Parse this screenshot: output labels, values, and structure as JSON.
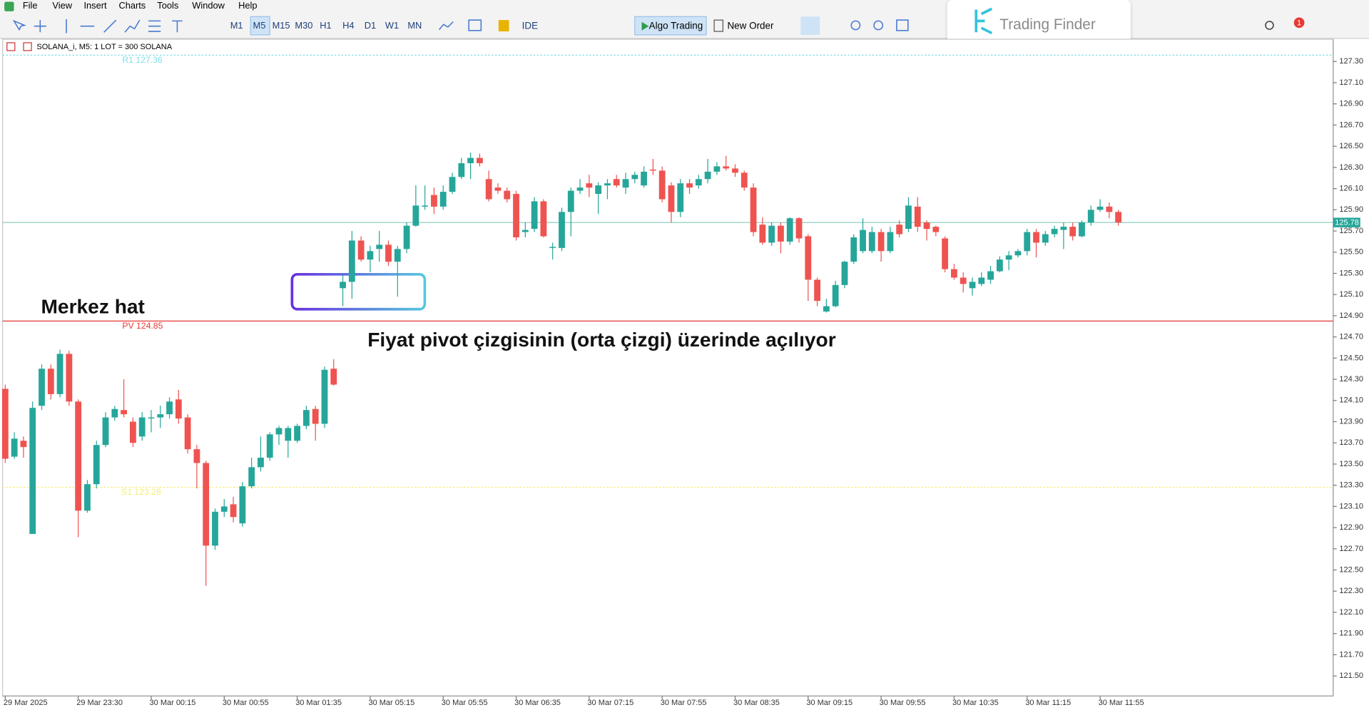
{
  "menu": [
    "File",
    "View",
    "Insert",
    "Charts",
    "Tools",
    "Window",
    "Help"
  ],
  "toolbar": {
    "timeframes": [
      "M1",
      "M5",
      "M15",
      "M30",
      "H1",
      "H4",
      "D1",
      "W1",
      "MN"
    ],
    "ide": "IDE",
    "algo_trading": "Algo Trading",
    "new_order": "New Order",
    "notifications": "1"
  },
  "watermark": "Trading Finder",
  "chart_data": {
    "type": "candlestick",
    "title": "SOLANA_i, M5:  1 LOT = 300 SOLANA",
    "x": [
      "29 Mar 2025",
      null,
      null,
      null,
      null,
      null,
      null,
      null,
      "29 Mar 23:30",
      null,
      null,
      null,
      null,
      null,
      null,
      null,
      "30 Mar 00:15",
      null,
      null,
      null,
      null,
      null,
      null,
      null,
      "30 Mar 00:55",
      null,
      null,
      null,
      null,
      null,
      null,
      null,
      "30 Mar 01:35",
      null,
      null,
      null,
      null,
      null,
      null,
      null,
      "30 Mar 05:15",
      null,
      null,
      null,
      null,
      null,
      null,
      null,
      "30 Mar 05:55",
      null,
      null,
      null,
      null,
      null,
      null,
      null,
      "30 Mar 06:35",
      null,
      null,
      null,
      null,
      null,
      null,
      null,
      "30 Mar 07:15",
      null,
      null,
      null,
      null,
      null,
      null,
      null,
      "30 Mar 07:55",
      null,
      null,
      null,
      null,
      null,
      null,
      null,
      "30 Mar 08:35",
      null,
      null,
      null,
      null,
      null,
      null,
      null,
      "30 Mar 09:15",
      null,
      null,
      null,
      null,
      null,
      null,
      null,
      "30 Mar 09:55",
      null,
      null,
      null,
      null,
      null,
      null,
      null,
      "30 Mar 10:35",
      null,
      null,
      null,
      null,
      null,
      null,
      null,
      "30 Mar 11:15",
      null,
      null,
      null,
      null,
      null,
      null,
      null,
      "30 Mar 11:55",
      null,
      null
    ],
    "open": [
      124.21,
      123.57,
      123.72,
      122.84,
      124.05,
      124.4,
      124.16,
      124.54,
      124.09,
      123.06,
      123.31,
      123.68,
      123.94,
      124.01,
      123.9,
      123.76,
      123.93,
      123.94,
      123.97,
      124.11,
      123.94,
      123.64,
      123.51,
      122.73,
      123.05,
      123.12,
      122.94,
      123.29,
      123.47,
      123.56,
      123.78,
      123.72,
      123.72,
      123.86,
      124.02,
      123.88,
      124.4,
      125.16,
      125.22,
      125.61,
      125.43,
      125.53,
      125.57,
      125.41,
      125.53,
      125.75,
      125.93,
      126.04,
      125.93,
      126.07,
      126.21,
      126.34,
      126.39,
      126.19,
      126.11,
      126.08,
      126.05,
      125.69,
      125.72,
      125.98,
      125.54,
      125.54,
      125.88,
      126.08,
      126.15,
      126.05,
      126.13,
      126.19,
      126.11,
      126.19,
      126.13,
      126.28,
      126.27,
      126.13,
      125.88,
      126.15,
      126.13,
      126.19,
      126.26,
      126.31,
      126.29,
      126.25,
      126.11,
      125.76,
      125.59,
      125.75,
      125.6,
      125.82,
      125.65,
      125.24,
      124.94,
      124.99,
      125.19,
      125.41,
      125.51,
      125.51,
      125.69,
      125.51,
      125.76,
      125.72,
      125.93,
      125.78,
      125.74,
      125.63,
      125.34,
      125.26,
      125.16,
      125.2,
      125.24,
      125.32,
      125.43,
      125.47,
      125.51,
      125.69,
      125.59,
      125.67,
      125.71,
      125.74,
      125.65,
      125.78,
      125.9,
      125.93,
      125.88
    ],
    "high": [
      124.25,
      123.8,
      123.76,
      124.09,
      124.44,
      124.44,
      124.58,
      124.57,
      124.11,
      123.35,
      123.72,
      123.99,
      124.05,
      124.3,
      123.94,
      123.99,
      124.01,
      124.05,
      124.13,
      124.2,
      123.97,
      123.68,
      123.53,
      123.08,
      123.17,
      123.19,
      123.33,
      123.56,
      123.76,
      123.8,
      123.86,
      123.86,
      123.88,
      124.05,
      124.05,
      124.42,
      124.49,
      125.28,
      125.7,
      125.65,
      125.56,
      125.7,
      125.61,
      125.56,
      125.78,
      126.13,
      126.13,
      126.11,
      126.13,
      126.25,
      126.39,
      126.44,
      126.43,
      126.27,
      126.15,
      126.11,
      126.08,
      125.78,
      126.02,
      126.0,
      125.59,
      125.92,
      126.11,
      126.19,
      126.23,
      126.16,
      126.19,
      126.23,
      126.25,
      126.26,
      126.31,
      126.38,
      126.31,
      126.16,
      126.19,
      126.19,
      126.23,
      126.38,
      126.35,
      126.41,
      126.33,
      126.27,
      126.15,
      125.83,
      125.78,
      125.78,
      125.83,
      125.83,
      125.67,
      125.26,
      125.06,
      125.23,
      125.42,
      125.67,
      125.82,
      125.74,
      125.72,
      125.74,
      125.8,
      126.02,
      126.02,
      125.8,
      125.75,
      125.65,
      125.39,
      125.31,
      125.26,
      125.31,
      125.37,
      125.46,
      125.51,
      125.53,
      125.72,
      125.72,
      125.7,
      125.75,
      125.78,
      125.78,
      125.8,
      125.94,
      126.0,
      125.97,
      125.9
    ],
    "low": [
      123.51,
      123.55,
      123.56,
      122.84,
      124.01,
      124.11,
      124.13,
      124.05,
      122.81,
      123.04,
      123.27,
      123.66,
      123.91,
      123.94,
      123.66,
      123.72,
      123.8,
      123.84,
      123.93,
      123.88,
      123.6,
      123.27,
      122.35,
      122.69,
      123.0,
      122.95,
      122.91,
      123.27,
      123.43,
      123.53,
      123.68,
      123.56,
      123.7,
      123.83,
      123.72,
      123.84,
      124.24,
      124.99,
      125.06,
      125.41,
      125.31,
      125.41,
      125.37,
      125.08,
      125.49,
      125.74,
      125.9,
      125.86,
      125.9,
      126.05,
      126.19,
      126.19,
      126.31,
      125.98,
      126.05,
      125.97,
      125.61,
      125.64,
      125.69,
      125.64,
      125.43,
      125.51,
      125.65,
      126.05,
      126.02,
      125.86,
      126.0,
      126.11,
      126.05,
      126.15,
      126.11,
      126.23,
      125.97,
      125.78,
      125.83,
      126.05,
      126.1,
      126.15,
      126.23,
      126.27,
      126.21,
      126.08,
      125.65,
      125.57,
      125.56,
      125.49,
      125.57,
      125.59,
      125.04,
      124.99,
      124.93,
      124.98,
      125.16,
      125.39,
      125.49,
      125.49,
      125.41,
      125.49,
      125.64,
      125.69,
      125.69,
      125.61,
      125.65,
      125.31,
      125.24,
      125.12,
      125.09,
      125.18,
      125.2,
      125.31,
      125.33,
      125.45,
      125.47,
      125.45,
      125.56,
      125.64,
      125.53,
      125.61,
      125.64,
      125.75,
      125.88,
      125.82,
      125.75
    ],
    "close": [
      123.55,
      123.74,
      123.66,
      124.03,
      124.4,
      124.16,
      124.54,
      124.09,
      123.06,
      123.31,
      123.68,
      123.94,
      124.02,
      123.97,
      123.7,
      123.94,
      123.94,
      123.97,
      124.09,
      123.93,
      123.64,
      123.51,
      122.73,
      123.05,
      123.1,
      123.0,
      123.29,
      123.47,
      123.56,
      123.78,
      123.84,
      123.84,
      123.86,
      124.01,
      123.88,
      124.39,
      124.25,
      125.22,
      125.61,
      125.43,
      125.51,
      125.57,
      125.41,
      125.53,
      125.75,
      125.94,
      125.94,
      125.93,
      126.07,
      126.21,
      126.34,
      126.39,
      126.34,
      126.0,
      126.08,
      126.0,
      125.64,
      125.71,
      125.98,
      125.65,
      125.55,
      125.88,
      126.08,
      126.11,
      126.11,
      126.13,
      126.15,
      126.13,
      126.19,
      126.23,
      126.26,
      126.27,
      126.0,
      125.88,
      126.15,
      126.11,
      126.19,
      126.26,
      126.31,
      126.29,
      126.25,
      126.11,
      125.69,
      125.59,
      125.75,
      125.6,
      125.82,
      125.63,
      125.24,
      125.04,
      124.99,
      125.19,
      125.41,
      125.64,
      125.71,
      125.69,
      125.51,
      125.69,
      125.67,
      125.94,
      125.74,
      125.72,
      125.69,
      125.34,
      125.26,
      125.2,
      125.22,
      125.26,
      125.32,
      125.43,
      125.47,
      125.51,
      125.69,
      125.59,
      125.67,
      125.72,
      125.74,
      125.65,
      125.78,
      125.9,
      125.93,
      125.88,
      125.78
    ],
    "up_color": "#26a69a",
    "down_color": "#ef5350",
    "ylim": [
      121.31,
      127.51
    ],
    "yticks": [
      {
        "value": 127.3,
        "label": "127.30"
      },
      {
        "value": 127.1,
        "label": "127.10"
      },
      {
        "value": 126.9,
        "label": "126.90"
      },
      {
        "value": 126.7,
        "label": "126.70"
      },
      {
        "value": 126.5,
        "label": "126.50"
      },
      {
        "value": 126.3,
        "label": "126.30"
      },
      {
        "value": 126.1,
        "label": "126.10"
      },
      {
        "value": 125.9,
        "label": "125.90"
      },
      {
        "value": 125.7,
        "label": "125.70"
      },
      {
        "value": 125.5,
        "label": "125.50"
      },
      {
        "value": 125.3,
        "label": "125.30"
      },
      {
        "value": 125.1,
        "label": "125.10"
      },
      {
        "value": 124.9,
        "label": "124.90"
      },
      {
        "value": 124.7,
        "label": "124.70"
      },
      {
        "value": 124.5,
        "label": "124.50"
      },
      {
        "value": 124.3,
        "label": "124.30"
      },
      {
        "value": 124.1,
        "label": "124.10"
      },
      {
        "value": 123.9,
        "label": "123.90"
      },
      {
        "value": 123.7,
        "label": "123.70"
      },
      {
        "value": 123.5,
        "label": "123.50"
      },
      {
        "value": 123.3,
        "label": "123.30"
      },
      {
        "value": 123.1,
        "label": "123.10"
      },
      {
        "value": 122.9,
        "label": "122.90"
      },
      {
        "value": 122.7,
        "label": "122.70"
      },
      {
        "value": 122.5,
        "label": "122.50"
      },
      {
        "value": 122.3,
        "label": "122.30"
      },
      {
        "value": 122.1,
        "label": "122.10"
      },
      {
        "value": 121.9,
        "label": "121.90"
      },
      {
        "value": 121.7,
        "label": "121.70"
      },
      {
        "value": 121.5,
        "label": "121.50"
      }
    ],
    "grid": false,
    "levels": [
      {
        "value": 127.36,
        "label": "R1 127.36",
        "color": "#7fdde8",
        "dashed": true
      },
      {
        "value": 124.85,
        "label": "PV 124.85",
        "color": "#e53935",
        "dashed": false
      },
      {
        "value": 123.28,
        "label": "S1 123.28",
        "color": "#f5ee70",
        "dashed": true
      }
    ],
    "current_price": {
      "value": 125.78,
      "label": "125.78",
      "color": "#8fcfc0"
    },
    "annotations": [
      "Merkez hat",
      "Fiyat pivot çizgisinin (orta çizgi) üzerinde açılıyor"
    ]
  }
}
